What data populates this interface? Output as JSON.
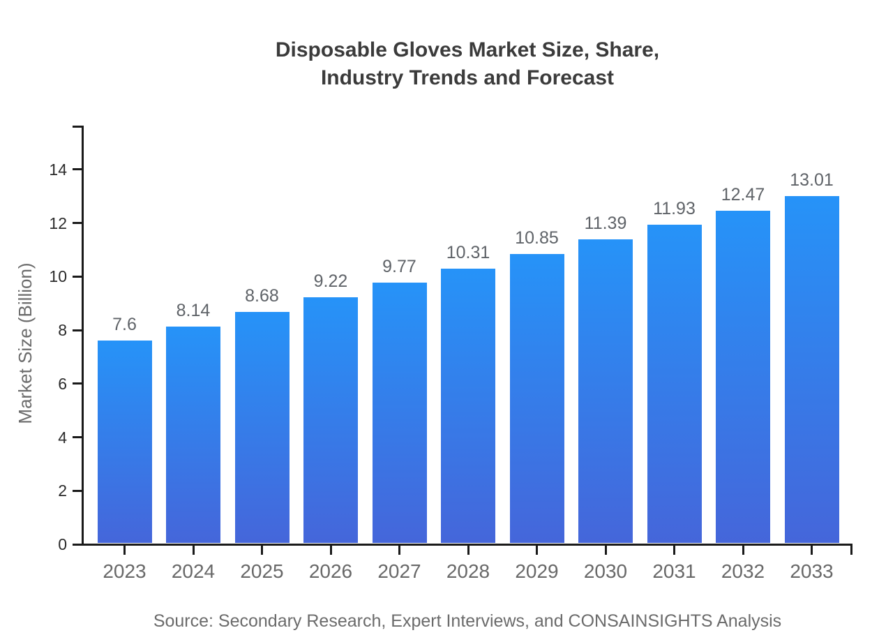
{
  "title": {
    "line1": "Disposable Gloves Market Size, Share,",
    "line2": "Industry Trends and Forecast"
  },
  "source_note": "Source: Secondary Research, Expert Interviews, and CONSAINSIGHTS Analysis",
  "chart_data": {
    "type": "bar",
    "title": "Disposable Gloves Market Size, Share, Industry Trends and Forecast",
    "categories": [
      "2023",
      "2024",
      "2025",
      "2026",
      "2027",
      "2028",
      "2029",
      "2030",
      "2031",
      "2032",
      "2033"
    ],
    "values": [
      7.6,
      8.14,
      8.68,
      9.22,
      9.77,
      10.31,
      10.85,
      11.39,
      11.93,
      12.47,
      13.01
    ],
    "value_labels": [
      "7.6",
      "8.14",
      "8.68",
      "9.22",
      "9.77",
      "10.31",
      "10.85",
      "11.39",
      "11.93",
      "12.47",
      "13.01"
    ],
    "xlabel": "",
    "ylabel": "Market Size (Billion)",
    "ylim": [
      0,
      15.6
    ],
    "yticks": [
      0,
      2,
      4,
      6,
      8,
      10,
      12,
      14
    ],
    "grid": false,
    "legend_position": "none",
    "bar_gradient": {
      "top": "#2693f8",
      "bottom": "#4566da"
    },
    "axis_color": "#1a1a1a",
    "value_label_color": "#5f6368",
    "xtick_label_color": "#686868",
    "ytick_label_color": "#2b2b2b",
    "background_color": "#ffffff"
  }
}
